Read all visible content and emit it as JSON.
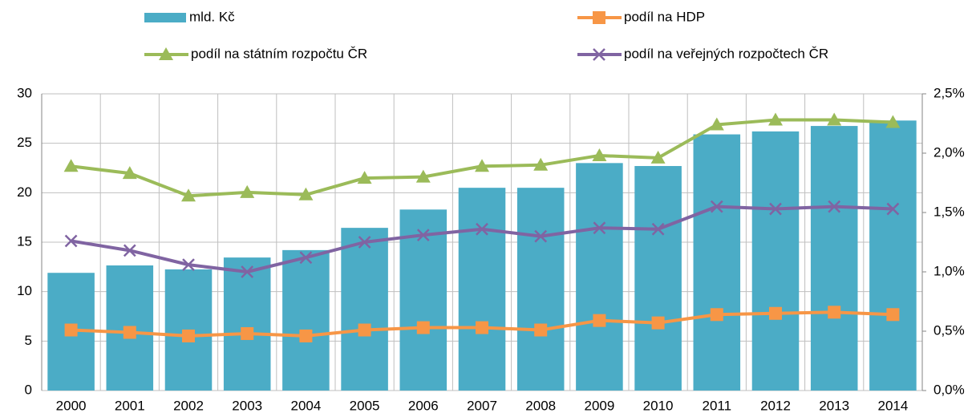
{
  "chart_data": {
    "type": "bar_line",
    "categories": [
      "2000",
      "2001",
      "2002",
      "2003",
      "2004",
      "2005",
      "2006",
      "2007",
      "2008",
      "2009",
      "2010",
      "2011",
      "2012",
      "2013",
      "2014"
    ],
    "ylim": [
      0,
      30
    ],
    "yticks": [
      0,
      5,
      10,
      15,
      20,
      25,
      30
    ],
    "y2lim": [
      0,
      2.5
    ],
    "y2ticks": [
      {
        "value": 0,
        "label": "0,0%"
      },
      {
        "value": 0.5,
        "label": "0,5%"
      },
      {
        "value": 1,
        "label": "1,0%"
      },
      {
        "value": 1.5,
        "label": "1,5%"
      },
      {
        "value": 2,
        "label": "2,0%"
      },
      {
        "value": 2.5,
        "label": "2,5%"
      }
    ],
    "grid": true,
    "series": [
      {
        "name": "mld. Kč",
        "type": "bar",
        "color": "#4bacc6",
        "values": [
          11.9,
          12.65,
          12.25,
          13.45,
          14.2,
          16.45,
          18.3,
          20.5,
          20.5,
          23.0,
          22.7,
          25.9,
          26.2,
          26.75,
          27.3
        ]
      },
      {
        "name": "podíl na HDP",
        "type": "line",
        "axis": "y2",
        "marker": "square",
        "color": "#f79646",
        "values": [
          0.51,
          0.49,
          0.46,
          0.48,
          0.46,
          0.51,
          0.53,
          0.53,
          0.51,
          0.59,
          0.57,
          0.64,
          0.65,
          0.66,
          0.64
        ]
      },
      {
        "name": "podíl na státním rozpočtu ČR",
        "type": "line",
        "axis": "y2",
        "marker": "triangle",
        "color": "#9bbb59",
        "values": [
          1.89,
          1.83,
          1.64,
          1.67,
          1.65,
          1.79,
          1.8,
          1.89,
          1.9,
          1.98,
          1.96,
          2.24,
          2.28,
          2.28,
          2.26
        ]
      },
      {
        "name": "podíl na veřejných rozpočtech ČR",
        "type": "line",
        "axis": "y2",
        "marker": "x",
        "color": "#8064a2",
        "values": [
          1.26,
          1.18,
          1.06,
          1.0,
          1.12,
          1.25,
          1.31,
          1.36,
          1.3,
          1.37,
          1.36,
          1.55,
          1.53,
          1.55,
          1.53
        ]
      }
    ]
  }
}
